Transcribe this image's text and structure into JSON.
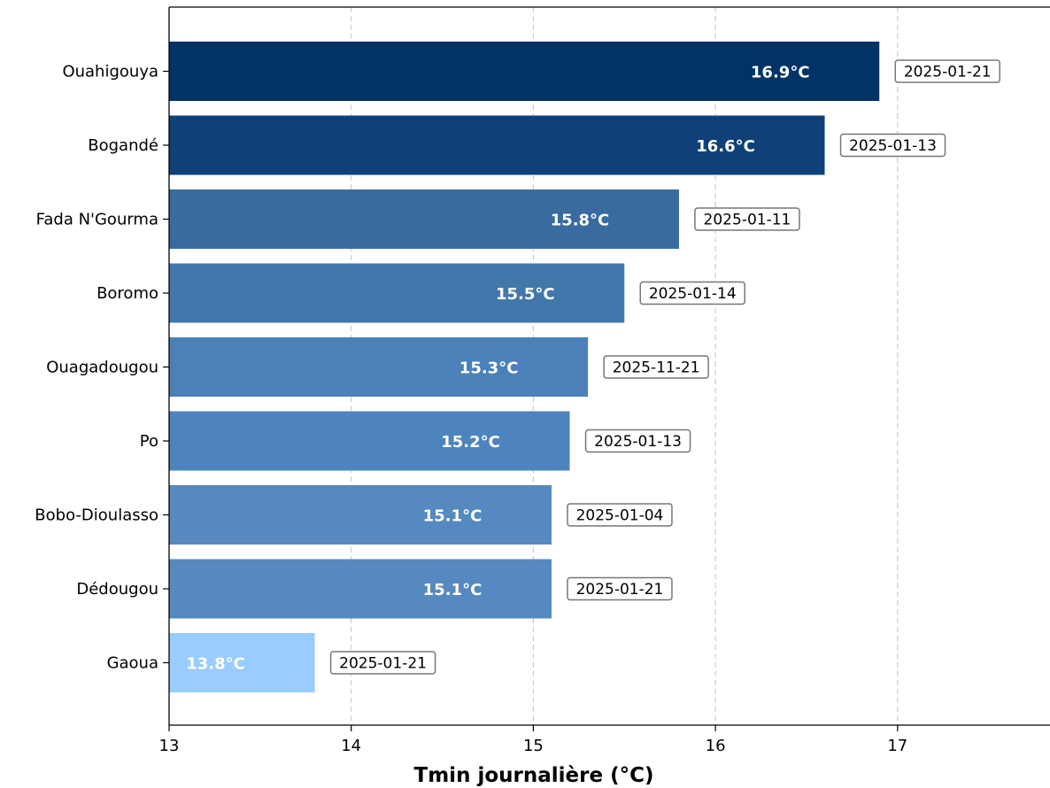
{
  "chart_data": {
    "type": "bar",
    "orientation": "horizontal",
    "title": "",
    "xlabel": "Tmin journalière (°C)",
    "ylabel": "",
    "xlim": [
      13,
      17.85
    ],
    "xticks": [
      13,
      14,
      15,
      16,
      17
    ],
    "grid": "x-dashed",
    "categories": [
      "Ouahigouya",
      "Bogandé",
      "Fada N'Gourma",
      "Boromo",
      "Ouagadougou",
      "Po",
      "Bobo-Dioulasso",
      "Dédougou",
      "Gaoua"
    ],
    "values": [
      16.9,
      16.6,
      15.8,
      15.5,
      15.3,
      15.2,
      15.1,
      15.1,
      13.8
    ],
    "value_labels": [
      "16.9°C",
      "16.6°C",
      "15.8°C",
      "15.5°C",
      "15.3°C",
      "15.2°C",
      "15.1°C",
      "15.1°C",
      "13.8°C"
    ],
    "dates": [
      "2025-01-21",
      "2025-01-13",
      "2025-01-11",
      "2025-01-14",
      "2025-11-21",
      "2025-01-13",
      "2025-01-04",
      "2025-01-21",
      "2025-01-21"
    ],
    "colors": [
      "#003366",
      "#0f4178",
      "#3a6b9f",
      "#4277ab",
      "#4b80b8",
      "#4e84bd",
      "#5589c0",
      "#5589c0",
      "#99ccff"
    ]
  }
}
